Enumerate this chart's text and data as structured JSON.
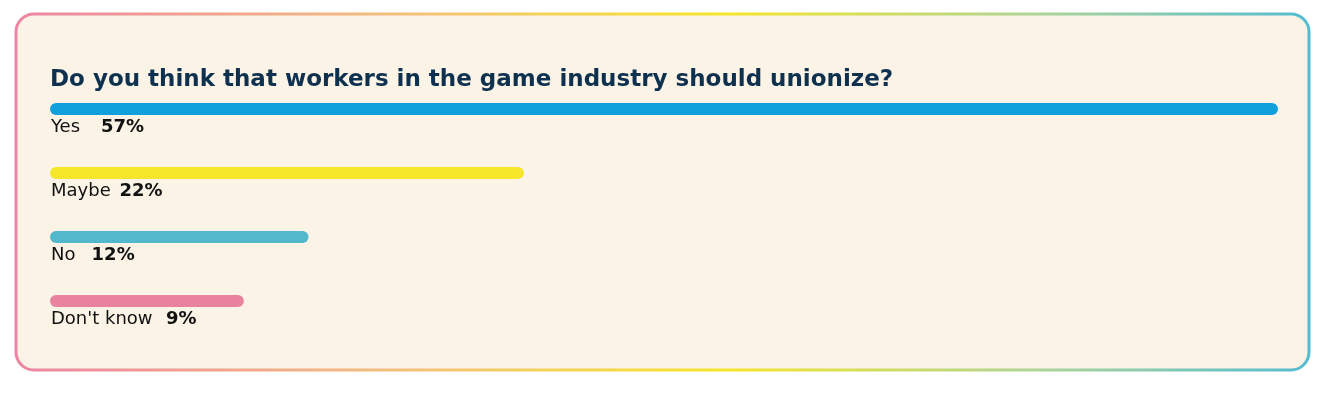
{
  "chart_data": {
    "type": "bar",
    "orientation": "horizontal",
    "title": "Do you think that workers in the game industry should unionize?",
    "categories": [
      "Yes",
      "Maybe",
      "No",
      "Don't know"
    ],
    "values": [
      57,
      22,
      12,
      9
    ],
    "value_labels": [
      "57%",
      "22%",
      "12%",
      "9%"
    ],
    "colors": [
      "#12a0dc",
      "#f5e62a",
      "#52b8cc",
      "#e8829f"
    ]
  }
}
